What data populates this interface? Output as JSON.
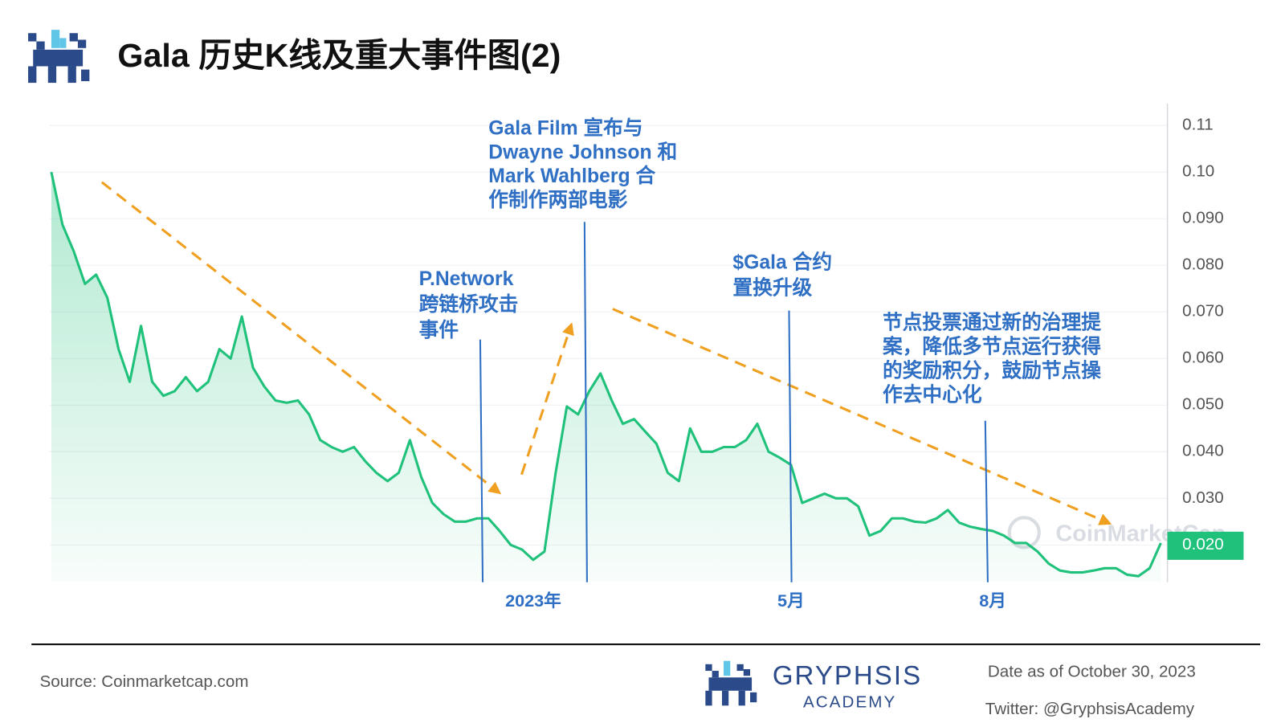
{
  "header": {
    "title": "Gala 历史K线及重大事件图(2)"
  },
  "chart_data": {
    "type": "line",
    "color": "#1fc17b",
    "watermark": "CoinMarketCap",
    "categories": [
      null,
      null,
      null,
      null,
      null,
      null,
      null,
      null,
      null,
      null,
      null,
      null,
      null,
      null,
      null,
      null,
      null,
      null,
      null,
      null,
      null,
      null,
      null,
      null,
      null,
      null,
      null,
      null,
      null,
      null,
      null,
      null,
      null,
      null,
      null,
      null,
      null,
      null,
      null,
      null,
      null,
      null,
      null,
      "2023年",
      null,
      null,
      null,
      null,
      null,
      null,
      null,
      null,
      null,
      null,
      null,
      null,
      null,
      null,
      null,
      null,
      null,
      null,
      null,
      null,
      null,
      null,
      "5月",
      null,
      null,
      null,
      null,
      null,
      null,
      null,
      null,
      null,
      null,
      null,
      null,
      null,
      null,
      null,
      null,
      null,
      "8月",
      null,
      null,
      null,
      null,
      null,
      null,
      null,
      null,
      null,
      null,
      null,
      null,
      null,
      null,
      null
    ],
    "values": [
      0.1,
      0.0887,
      0.083,
      0.076,
      0.078,
      0.073,
      0.062,
      0.055,
      0.067,
      0.055,
      0.052,
      0.053,
      0.056,
      0.053,
      0.055,
      0.062,
      0.06,
      0.069,
      0.058,
      0.054,
      0.051,
      0.0505,
      0.051,
      0.048,
      0.0425,
      0.041,
      0.04,
      0.041,
      0.038,
      0.0355,
      0.0337,
      0.0355,
      0.0425,
      0.0346,
      0.029,
      0.0266,
      0.025,
      0.025,
      0.0257,
      0.0257,
      0.023,
      0.02,
      0.019,
      0.0168,
      0.0186,
      0.0355,
      0.0497,
      0.048,
      0.053,
      0.0568,
      0.051,
      0.046,
      0.047,
      0.0443,
      0.0417,
      0.0355,
      0.0337,
      0.045,
      0.04,
      0.04,
      0.041,
      0.041,
      0.0425,
      0.046,
      0.04,
      0.0387,
      0.0372,
      0.029,
      0.03,
      0.031,
      0.03,
      0.03,
      0.0283,
      0.022,
      0.023,
      0.0257,
      0.0257,
      0.025,
      0.0248,
      0.0257,
      0.0275,
      0.0248,
      0.0239,
      0.0234,
      0.023,
      0.022,
      0.0204,
      0.0204,
      0.0186,
      0.016,
      0.0145,
      0.0141,
      0.0141,
      0.0145,
      0.015,
      0.015,
      0.0136,
      0.0133,
      0.015,
      0.0204
    ],
    "ylim": [
      0.012,
      0.114
    ],
    "yticks": [
      0.11,
      {
        "value": 0.1,
        "label": "0.10"
      },
      {
        "value": 0.09,
        "label": "0.090"
      },
      {
        "value": 0.08,
        "label": "0.080"
      },
      {
        "value": 0.07,
        "label": "0.070"
      },
      {
        "value": 0.06,
        "label": "0.060"
      },
      {
        "value": 0.05,
        "label": "0.050"
      },
      {
        "value": 0.04,
        "label": "0.040"
      },
      {
        "value": 0.03,
        "label": "0.030"
      },
      {
        "value": 0.02,
        "label": "0.020"
      }
    ],
    "grid": true,
    "annotations": [
      {
        "lines": [
          "P.Network",
          "跨链桥攻击",
          "事件"
        ]
      },
      {
        "lines": [
          "Gala Film 宣布与",
          "Dwayne Johnson 和",
          "Mark Wahlberg 合",
          "作制作两部电影"
        ]
      },
      {
        "lines": [
          "$Gala 合约",
          "置换升级"
        ]
      },
      {
        "lines": [
          "节点投票通过新的治理提",
          "案，降低多节点运行获得",
          "的奖励积分，鼓励节点操",
          "作去中心化"
        ]
      }
    ]
  },
  "footer": {
    "source": "Source: Coinmarketcap.com",
    "brand": "GRYPHSIS",
    "brand_sub": "ACADEMY",
    "date": "Date as of October 30, 2023",
    "twitter": "Twitter: @GryphsisAcademy"
  }
}
